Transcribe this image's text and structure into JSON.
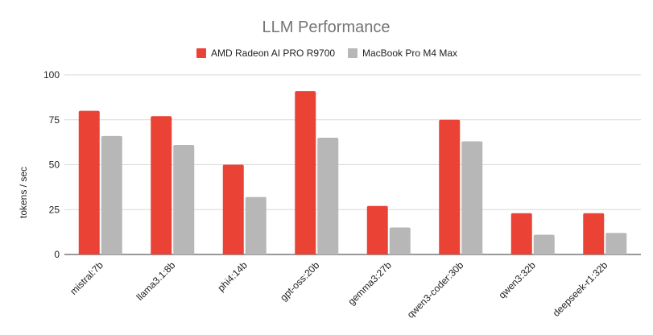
{
  "chart_data": {
    "type": "bar",
    "title": "LLM Performance",
    "xlabel": "",
    "ylabel": "tokens / sec",
    "ylim": [
      0,
      100
    ],
    "yticks": [
      0,
      25,
      50,
      75,
      100
    ],
    "grid": true,
    "legend_position": "top",
    "categories": [
      "mistral:7b",
      "llama3.1:8b",
      "phi4:14b",
      "gpt-oss:20b",
      "gemma3:27b",
      "qwen3-coder:30b",
      "qwen3:32b",
      "deepseek-r1:32b"
    ],
    "series": [
      {
        "name": "AMD Radeon AI PRO R9700",
        "color": "#ea4335",
        "values": [
          80,
          77,
          50,
          91,
          27,
          75,
          23,
          23
        ]
      },
      {
        "name": "MacBook Pro M4 Max",
        "color": "#b7b7b7",
        "values": [
          66,
          61,
          32,
          65,
          15,
          63,
          11,
          12
        ]
      }
    ]
  }
}
